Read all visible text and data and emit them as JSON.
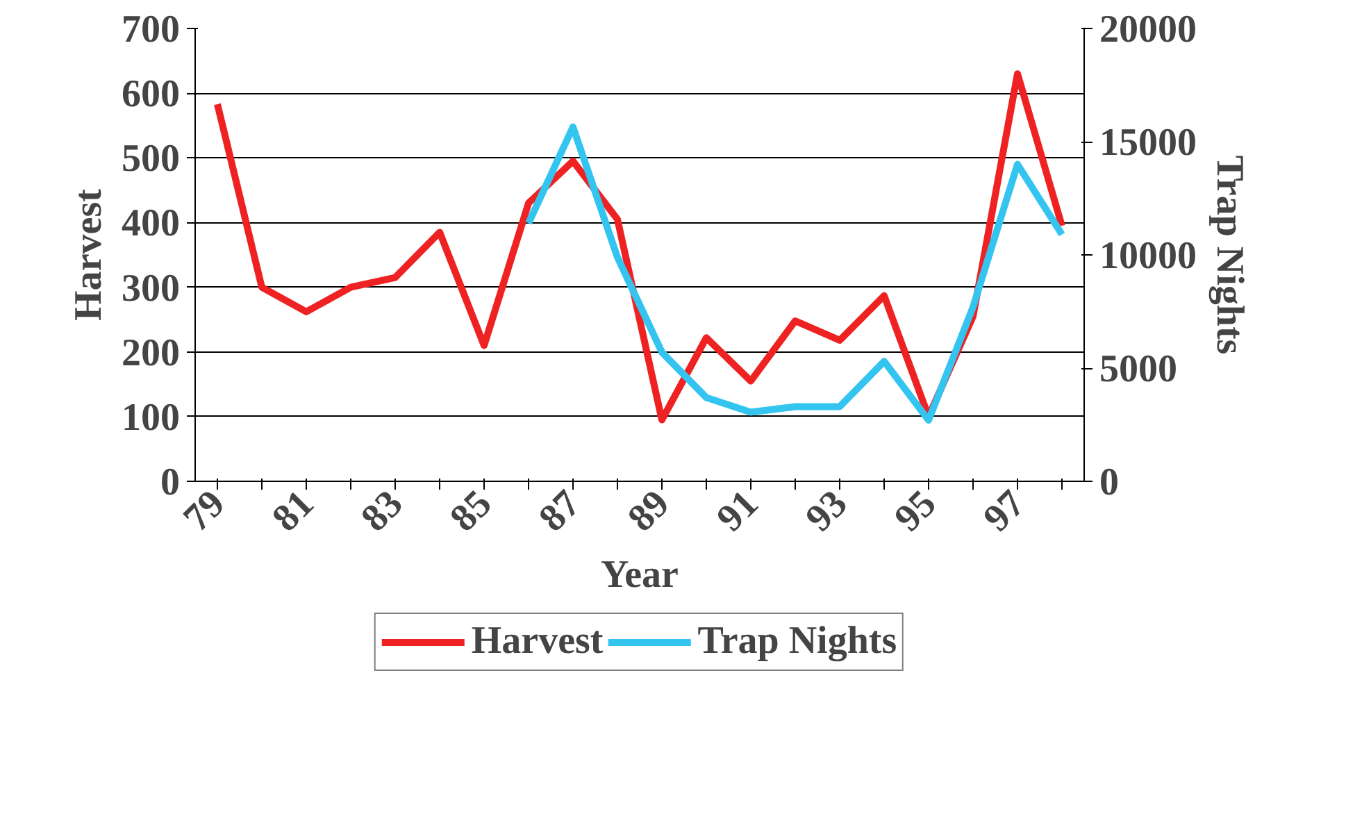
{
  "chart_data": {
    "type": "line",
    "xlabel": "Year",
    "ylabel": "Harvest",
    "y2label": "Trap Nights",
    "categories": [
      "79",
      null,
      "81",
      null,
      "83",
      null,
      "85",
      null,
      "87",
      null,
      "89",
      null,
      "91",
      null,
      "93",
      null,
      "95",
      null,
      "97",
      null
    ],
    "series": [
      {
        "name": "Harvest",
        "color": "#ee2222",
        "values": [
          583,
          300,
          262,
          300,
          315,
          385,
          210,
          430,
          495,
          405,
          95,
          222,
          155,
          248,
          218,
          287,
          100,
          255,
          630,
          395
        ]
      },
      {
        "name": "Trap Nights",
        "color": "#33c4f0",
        "axis": "y2",
        "values": [
          null,
          null,
          null,
          null,
          null,
          null,
          null,
          11400,
          15650,
          9900,
          5700,
          3700,
          3050,
          3300,
          3300,
          5300,
          2700,
          7700,
          14000,
          10900
        ]
      }
    ],
    "ylim": [
      0,
      700
    ],
    "yticks": [
      0,
      100,
      200,
      300,
      400,
      500,
      600,
      700
    ],
    "y2lim": [
      0,
      20000
    ],
    "y2ticks": [
      0,
      5000,
      10000,
      15000,
      20000
    ],
    "grid": "y",
    "legend": "bottom",
    "line_style": "solid"
  }
}
